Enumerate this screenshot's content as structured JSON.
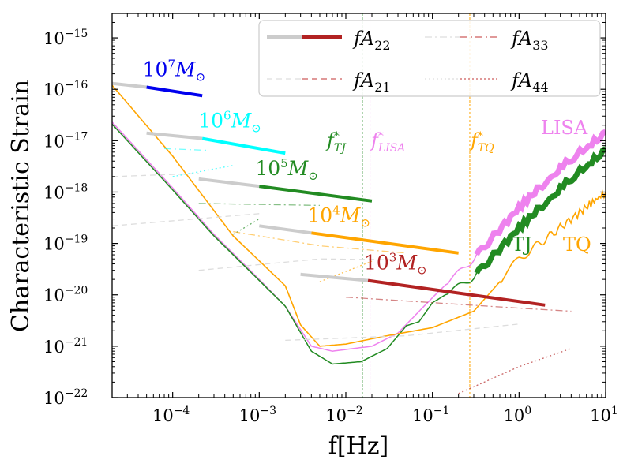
{
  "chart_data": {
    "type": "line",
    "xlabel": "f[Hz]",
    "ylabel": "Characteristic Strain",
    "xscale": "log",
    "yscale": "log",
    "xlim": [
      2e-05,
      10
    ],
    "ylim": [
      1e-22,
      3e-15
    ],
    "x_ticks": [
      {
        "base": "10",
        "exp": "−4",
        "value": 0.0001
      },
      {
        "base": "10",
        "exp": "−3",
        "value": 0.001
      },
      {
        "base": "10",
        "exp": "−2",
        "value": 0.01
      },
      {
        "base": "10",
        "exp": "−1",
        "value": 0.1
      },
      {
        "base": "10",
        "exp": "0",
        "value": 1
      },
      {
        "base": "10",
        "exp": "1",
        "value": 10
      }
    ],
    "y_ticks": [
      {
        "base": "10",
        "exp": "−22",
        "value": 1e-22
      },
      {
        "base": "10",
        "exp": "−21",
        "value": 1e-21
      },
      {
        "base": "10",
        "exp": "−20",
        "value": 1e-20
      },
      {
        "base": "10",
        "exp": "−19",
        "value": 1e-19
      },
      {
        "base": "10",
        "exp": "−18",
        "value": 1e-18
      },
      {
        "base": "10",
        "exp": "−17",
        "value": 1e-17
      },
      {
        "base": "10",
        "exp": "−16",
        "value": 1e-16
      },
      {
        "base": "10",
        "exp": "−15",
        "value": 1e-15
      }
    ],
    "legend": {
      "placement": "top-right",
      "entries": [
        {
          "main": "fA",
          "sub": "22",
          "style": "solid",
          "color": "#b22222"
        },
        {
          "main": "fA",
          "sub": "33",
          "style": "dashdot",
          "color": "#cd5c5c"
        },
        {
          "main": "fA",
          "sub": "21",
          "style": "dashed",
          "color": "#cd5c5c"
        },
        {
          "main": "fA",
          "sub": "44",
          "style": "dotted",
          "color": "#cd5c5c"
        }
      ]
    },
    "detectors": [
      {
        "name": "LISA",
        "color": "#ee82ee",
        "points": [
          [
            2e-05,
            2.3e-17
          ],
          [
            0.0001,
            1.2e-18
          ],
          [
            0.0003,
            1.5e-19
          ],
          [
            0.001,
            2e-20
          ],
          [
            0.002,
            6e-21
          ],
          [
            0.004,
            1e-21
          ],
          [
            0.007,
            8e-22
          ],
          [
            0.02,
            1e-21
          ],
          [
            0.04,
            1.8e-21
          ],
          [
            0.08,
            6e-21
          ],
          [
            0.12,
            1.2e-20
          ],
          [
            0.3,
            5e-20
          ],
          [
            1,
            5e-19
          ],
          [
            3,
            3e-18
          ],
          [
            10,
            1.5e-17
          ]
        ]
      },
      {
        "name": "TJ",
        "color": "#228b22",
        "points": [
          [
            2e-05,
            2.1e-17
          ],
          [
            0.0001,
            1.1e-18
          ],
          [
            0.0003,
            1.4e-19
          ],
          [
            0.001,
            1.9e-20
          ],
          [
            0.002,
            6e-21
          ],
          [
            0.004,
            8e-22
          ],
          [
            0.007,
            4.5e-22
          ],
          [
            0.015,
            5e-22
          ],
          [
            0.03,
            9e-22
          ],
          [
            0.05,
            2.5e-21
          ],
          [
            0.07,
            3e-21
          ],
          [
            0.1,
            7e-21
          ],
          [
            0.3,
            2.2e-20
          ],
          [
            1,
            2e-19
          ],
          [
            3,
            1.2e-18
          ],
          [
            10,
            7e-18
          ]
        ]
      },
      {
        "name": "TQ",
        "color": "#ffa500",
        "points": [
          [
            2e-05,
            1.2e-16
          ],
          [
            0.0001,
            5e-18
          ],
          [
            0.0005,
            1.4e-19
          ],
          [
            0.002,
            1.5e-20
          ],
          [
            0.003,
            2.6e-21
          ],
          [
            0.005,
            1e-21
          ],
          [
            0.01,
            1.1e-21
          ],
          [
            0.03,
            1.6e-21
          ],
          [
            0.1,
            2.3e-21
          ],
          [
            0.3,
            4.8e-21
          ],
          [
            0.6,
            1.8e-20
          ],
          [
            1,
            5e-20
          ],
          [
            2,
            1.2e-19
          ],
          [
            5,
            4e-19
          ],
          [
            10,
            1e-18
          ]
        ]
      }
    ],
    "detector_labels": [
      "LISA",
      "TJ",
      "TQ"
    ],
    "reference_lines": [
      {
        "x": 0.0155,
        "color": "#228b22",
        "label_main": "f",
        "label_sub": "TJ",
        "label_sup": "*"
      },
      {
        "x": 0.019,
        "color": "#ee82ee",
        "label_main": "f",
        "label_sub": "LISA",
        "label_sup": "*"
      },
      {
        "x": 0.27,
        "color": "#ffa500",
        "label_main": "f",
        "label_sub": "TQ",
        "label_sup": "*"
      }
    ],
    "sources": [
      {
        "base": "10",
        "exp": "7",
        "unit": "M",
        "unit_sub": "⊙",
        "color": "#0000ee",
        "A22": {
          "gray": [
            [
              2e-05,
              1.3e-16
            ],
            [
              5e-05,
              1.1e-16
            ]
          ],
          "colored": [
            [
              5e-05,
              1.1e-16
            ],
            [
              0.00022,
              7.5e-17
            ]
          ]
        }
      },
      {
        "base": "10",
        "exp": "6",
        "unit": "M",
        "unit_sub": "⊙",
        "color": "#00ffff",
        "A22": {
          "gray": [
            [
              5e-05,
              1.4e-17
            ],
            [
              0.00022,
              1.1e-17
            ]
          ],
          "colored": [
            [
              0.00022,
              1.1e-17
            ],
            [
              0.002,
              5.7e-18
            ]
          ]
        },
        "A33": [
          [
            8e-05,
            7e-18
          ],
          [
            0.00025,
            6.5e-18
          ]
        ],
        "A44": [
          [
            0.0001,
            2e-18
          ],
          [
            0.0005,
            3.3e-18
          ]
        ],
        "A21": [
          [
            2e-05,
            2e-18
          ],
          [
            0.0002,
            2.3e-18
          ]
        ]
      },
      {
        "base": "10",
        "exp": "5",
        "unit": "M",
        "unit_sub": "⊙",
        "color": "#228b22",
        "A22": {
          "gray": [
            [
              0.0002,
              1.8e-18
            ],
            [
              0.001,
              1.3e-18
            ]
          ],
          "colored": [
            [
              0.001,
              1.3e-18
            ],
            [
              0.02,
              6.7e-19
            ]
          ]
        },
        "A33": [
          [
            0.0002,
            6e-19
          ],
          [
            0.005,
            5.5e-19
          ]
        ],
        "A44": [
          [
            0.0005,
            1.5e-19
          ],
          [
            0.001,
            3e-19
          ]
        ],
        "A21": [
          [
            2e-05,
            2.2e-19
          ],
          [
            0.001,
            3.8e-19
          ]
        ]
      },
      {
        "base": "10",
        "exp": "4",
        "unit": "M",
        "unit_sub": "⊙",
        "color": "#ffa500",
        "A22": {
          "gray": [
            [
              0.001,
              2.2e-19
            ],
            [
              0.004,
              1.6e-19
            ]
          ],
          "colored": [
            [
              0.004,
              1.6e-19
            ],
            [
              0.2,
              6.5e-20
            ]
          ]
        },
        "A33": [
          [
            0.0005,
            1.7e-19
          ],
          [
            0.005,
            9e-20
          ],
          [
            0.05,
            6.5e-20
          ]
        ],
        "A44": [
          [
            0.005,
            1.8e-20
          ],
          [
            0.02,
            4.5e-20
          ]
        ],
        "A21": [
          [
            0.0002,
            3e-20
          ],
          [
            0.005,
            5e-20
          ],
          [
            0.04,
            4.8e-20
          ]
        ]
      },
      {
        "base": "10",
        "exp": "3",
        "unit": "M",
        "unit_sub": "⊙",
        "color": "#b22222",
        "A22": {
          "gray": [
            [
              0.003,
              2.5e-20
            ],
            [
              0.018,
              1.9e-20
            ]
          ],
          "colored": [
            [
              0.018,
              1.9e-20
            ],
            [
              2,
              6.3e-21
            ]
          ]
        },
        "A33": [
          [
            0.01,
            9e-21
          ],
          [
            1,
            5.5e-21
          ],
          [
            4,
            4.8e-21
          ]
        ],
        "A44": [
          [
            0.2,
            1.2e-22
          ],
          [
            1,
            4e-22
          ],
          [
            4,
            9e-22
          ]
        ],
        "A21": [
          [
            0.002,
            1.3e-21
          ],
          [
            0.05,
            1.6e-21
          ],
          [
            1,
            2.7e-21
          ]
        ]
      }
    ]
  }
}
